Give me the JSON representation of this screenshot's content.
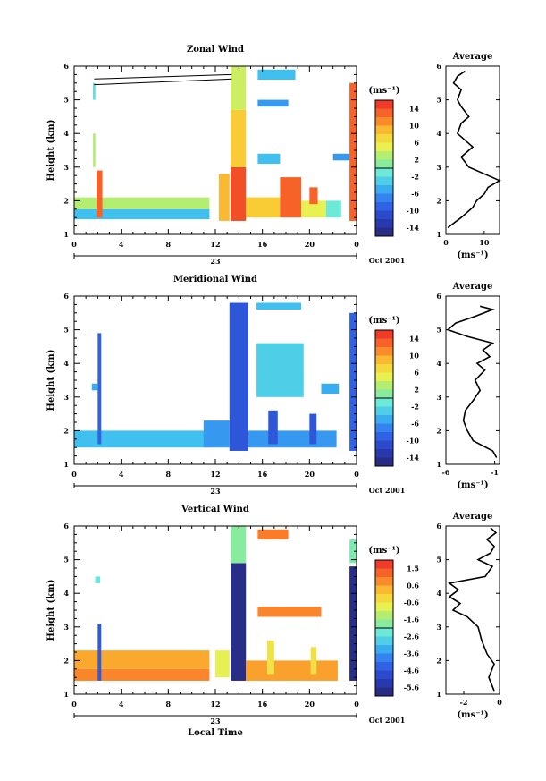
{
  "figure": {
    "x_date_label": "Oct 2001",
    "x_axis_label": "Local Time",
    "day_label": "23",
    "unit_label": "(ms⁻¹)"
  },
  "chart_data": [
    {
      "type": "heatmap",
      "title": "Zonal Wind",
      "xlabel": "",
      "ylabel": "Height (km)",
      "xlim": [
        0,
        24
      ],
      "ylim": [
        1,
        6
      ],
      "x_ticks": [
        "0",
        "4",
        "8",
        "12",
        "16",
        "20",
        "0"
      ],
      "y_ticks": [
        "1",
        "2",
        "3",
        "4",
        "5",
        "6"
      ],
      "colorbar": {
        "unit": "(ms⁻¹)",
        "range": [
          -16,
          16
        ],
        "ticks": [
          "14",
          "10",
          "6",
          "2",
          "-2",
          "-6",
          "-10",
          "-14"
        ]
      },
      "blocks": [
        {
          "t0": 0.0,
          "t1": 11.5,
          "h0": 1.45,
          "h1": 1.75,
          "v": -4
        },
        {
          "t0": 0.0,
          "t1": 11.5,
          "h0": 1.75,
          "h1": 2.1,
          "v": 3
        },
        {
          "t0": 1.9,
          "t1": 2.4,
          "h0": 1.5,
          "h1": 2.9,
          "v": 13
        },
        {
          "t0": 1.6,
          "t1": 1.8,
          "h0": 3.0,
          "h1": 4.0,
          "v": 3
        },
        {
          "t0": 1.6,
          "t1": 1.8,
          "h0": 5.0,
          "h1": 5.5,
          "v": -2
        },
        {
          "t0": 12.3,
          "t1": 13.2,
          "h0": 1.4,
          "h1": 2.8,
          "v": 9
        },
        {
          "t0": 13.3,
          "t1": 14.6,
          "h0": 1.4,
          "h1": 3.0,
          "v": 14
        },
        {
          "t0": 13.3,
          "t1": 14.6,
          "h0": 3.0,
          "h1": 4.7,
          "v": 8
        },
        {
          "t0": 13.3,
          "t1": 14.6,
          "h0": 4.7,
          "h1": 6.0,
          "v": 4
        },
        {
          "t0": 14.6,
          "t1": 17.5,
          "h0": 1.5,
          "h1": 2.1,
          "v": 8
        },
        {
          "t0": 17.5,
          "t1": 19.3,
          "h0": 1.5,
          "h1": 2.7,
          "v": 13
        },
        {
          "t0": 19.3,
          "t1": 21.4,
          "h0": 1.5,
          "h1": 2.0,
          "v": 5
        },
        {
          "t0": 20.0,
          "t1": 20.7,
          "h0": 1.9,
          "h1": 2.4,
          "v": 13
        },
        {
          "t0": 21.4,
          "t1": 22.7,
          "h0": 1.5,
          "h1": 2.0,
          "v": -1
        },
        {
          "t0": 23.4,
          "t1": 24.0,
          "h0": 1.4,
          "h1": 5.5,
          "v": 13
        },
        {
          "t0": 15.6,
          "t1": 18.8,
          "h0": 5.6,
          "h1": 5.9,
          "v": -4
        },
        {
          "t0": 15.6,
          "t1": 18.2,
          "h0": 4.8,
          "h1": 5.0,
          "v": -6
        },
        {
          "t0": 15.6,
          "t1": 17.5,
          "h0": 3.1,
          "h1": 3.4,
          "v": -4
        },
        {
          "t0": 22.0,
          "t1": 23.4,
          "h0": 3.2,
          "h1": 3.4,
          "v": -6
        }
      ],
      "profile": {
        "title": "Average",
        "xlim": [
          0,
          14
        ],
        "x_ticks": [
          "0",
          "10"
        ],
        "unit": "(ms⁻¹)",
        "heights": [
          1.2,
          1.5,
          1.8,
          2.0,
          2.2,
          2.4,
          2.6,
          2.8,
          3.0,
          3.3,
          3.6,
          3.8,
          4.0,
          4.3,
          4.5,
          4.8,
          5.0,
          5.3,
          5.5,
          5.7,
          5.85
        ],
        "values": [
          0.5,
          4,
          7,
          8,
          10,
          11,
          14,
          10,
          6,
          4,
          7,
          5,
          3,
          4,
          6,
          4,
          3,
          4,
          2,
          3,
          5
        ]
      }
    },
    {
      "type": "heatmap",
      "title": "Meridional Wind",
      "xlabel": "",
      "ylabel": "Height (km)",
      "xlim": [
        0,
        24
      ],
      "ylim": [
        1,
        6
      ],
      "x_ticks": [
        "0",
        "4",
        "8",
        "12",
        "16",
        "20",
        "0"
      ],
      "y_ticks": [
        "1",
        "2",
        "3",
        "4",
        "5",
        "6"
      ],
      "colorbar": {
        "unit": "(ms⁻¹)",
        "range": [
          -16,
          16
        ],
        "ticks": [
          "14",
          "10",
          "6",
          "2",
          "-2",
          "-6",
          "-10",
          "-14"
        ]
      },
      "blocks": [
        {
          "t0": 0.0,
          "t1": 11.5,
          "h0": 1.5,
          "h1": 2.0,
          "v": -4
        },
        {
          "t0": 2.0,
          "t1": 2.3,
          "h0": 1.6,
          "h1": 4.9,
          "v": -9
        },
        {
          "t0": 11.0,
          "t1": 13.2,
          "h0": 1.5,
          "h1": 2.3,
          "v": -6
        },
        {
          "t0": 13.2,
          "t1": 14.8,
          "h0": 1.4,
          "h1": 5.8,
          "v": -10
        },
        {
          "t0": 14.8,
          "t1": 22.3,
          "h0": 1.5,
          "h1": 2.0,
          "v": -6
        },
        {
          "t0": 16.5,
          "t1": 17.3,
          "h0": 1.6,
          "h1": 2.6,
          "v": -10
        },
        {
          "t0": 20.0,
          "t1": 20.6,
          "h0": 1.6,
          "h1": 2.5,
          "v": -10
        },
        {
          "t0": 23.4,
          "t1": 24.0,
          "h0": 1.4,
          "h1": 5.5,
          "v": -9
        },
        {
          "t0": 15.5,
          "t1": 19.5,
          "h0": 3.0,
          "h1": 4.6,
          "v": -3
        },
        {
          "t0": 15.5,
          "t1": 19.3,
          "h0": 5.6,
          "h1": 5.8,
          "v": -4
        },
        {
          "t0": 21.0,
          "t1": 22.5,
          "h0": 3.1,
          "h1": 3.4,
          "v": -5
        },
        {
          "t0": 1.5,
          "t1": 2.0,
          "h0": 3.2,
          "h1": 3.4,
          "v": -5
        }
      ],
      "profile": {
        "title": "Average",
        "xlim": [
          -6,
          -0.5
        ],
        "x_ticks": [
          "-6",
          "-1"
        ],
        "unit": "(ms⁻¹)",
        "heights": [
          1.2,
          1.4,
          1.7,
          2.0,
          2.3,
          2.6,
          2.9,
          3.2,
          3.5,
          3.8,
          4.0,
          4.2,
          4.4,
          4.6,
          4.8,
          5.0,
          5.2,
          5.4,
          5.6,
          5.7
        ],
        "values": [
          -0.8,
          -1.2,
          -3.2,
          -3.8,
          -4.2,
          -4.0,
          -3.2,
          -2.5,
          -3.0,
          -2.0,
          -2.8,
          -1.5,
          -2.2,
          -1.2,
          -3.8,
          -5.8,
          -5.0,
          -3.0,
          -1.2,
          -2.5
        ]
      }
    },
    {
      "type": "heatmap",
      "title": "Vertical Wind",
      "xlabel": "Local Time",
      "ylabel": "Height (km)",
      "xlim": [
        0,
        24
      ],
      "ylim": [
        1,
        6
      ],
      "x_ticks": [
        "0",
        "4",
        "8",
        "12",
        "16",
        "20",
        "0"
      ],
      "y_ticks": [
        "1",
        "2",
        "3",
        "4",
        "5",
        "6"
      ],
      "colorbar": {
        "unit": "(ms⁻¹)",
        "range": [
          -6.1,
          2.0
        ],
        "ticks": [
          "1.5",
          "0.6",
          "-0.6",
          "-1.6",
          "-2.6",
          "-3.6",
          "-4.6",
          "-5.6"
        ]
      },
      "blocks": [
        {
          "t0": 0.0,
          "t1": 11.5,
          "h0": 1.4,
          "h1": 1.75,
          "v": 0.8
        },
        {
          "t0": 0.0,
          "t1": 11.5,
          "h0": 1.75,
          "h1": 2.3,
          "v": 0.4
        },
        {
          "t0": 2.0,
          "t1": 2.3,
          "h0": 1.4,
          "h1": 3.1,
          "v": -4.5
        },
        {
          "t0": 12.0,
          "t1": 13.2,
          "h0": 1.5,
          "h1": 2.3,
          "v": -0.8
        },
        {
          "t0": 13.3,
          "t1": 14.6,
          "h0": 1.4,
          "h1": 4.9,
          "v": -5.8
        },
        {
          "t0": 13.3,
          "t1": 14.6,
          "h0": 4.9,
          "h1": 6.0,
          "v": -1.8
        },
        {
          "t0": 14.6,
          "t1": 22.4,
          "h0": 1.4,
          "h1": 2.0,
          "v": 0.5
        },
        {
          "t0": 16.4,
          "t1": 17.0,
          "h0": 1.6,
          "h1": 2.6,
          "v": -0.5
        },
        {
          "t0": 20.1,
          "t1": 20.6,
          "h0": 1.6,
          "h1": 2.4,
          "v": -0.4
        },
        {
          "t0": 23.4,
          "t1": 24.0,
          "h0": 1.4,
          "h1": 4.8,
          "v": -5.8
        },
        {
          "t0": 15.6,
          "t1": 21.0,
          "h0": 3.3,
          "h1": 3.6,
          "v": 0.8
        },
        {
          "t0": 15.6,
          "t1": 18.2,
          "h0": 5.6,
          "h1": 5.9,
          "v": 0.9
        },
        {
          "t0": 23.4,
          "t1": 24.0,
          "h0": 4.9,
          "h1": 5.6,
          "v": -2.0
        },
        {
          "t0": 1.8,
          "t1": 2.2,
          "h0": 4.3,
          "h1": 4.5,
          "v": -2.4
        }
      ],
      "profile": {
        "title": "Average",
        "xlim": [
          -3,
          0
        ],
        "x_ticks": [
          "-2",
          "0"
        ],
        "unit": "(ms⁻¹)",
        "heights": [
          1.1,
          1.5,
          1.9,
          2.2,
          2.6,
          3.0,
          3.3,
          3.5,
          3.7,
          3.9,
          4.1,
          4.3,
          4.5,
          4.8,
          5.0,
          5.2,
          5.4,
          5.6,
          5.8,
          5.95
        ],
        "values": [
          -0.3,
          -0.6,
          -0.3,
          -0.7,
          -1.0,
          -1.2,
          -1.8,
          -2.6,
          -2.2,
          -2.8,
          -2.3,
          -2.8,
          -0.8,
          -0.4,
          -1.2,
          -0.5,
          -0.3,
          -0.7,
          -0.2,
          -0.5
        ]
      }
    }
  ]
}
